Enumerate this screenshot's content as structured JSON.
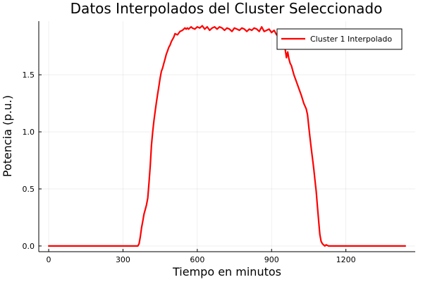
{
  "chart_data": {
    "type": "line",
    "title": "Datos Interpolados del Cluster Seleccionado",
    "xlabel": "Tiempo en minutos",
    "ylabel": "Potencia (p.u.)",
    "xlim": [
      -40,
      1480
    ],
    "ylim": [
      -0.05,
      1.97
    ],
    "xticks": [
      0,
      300,
      600,
      900,
      1200
    ],
    "xtick_labels": [
      "0",
      "300",
      "600",
      "900",
      "1200"
    ],
    "yticks": [
      0.0,
      0.5,
      1.0,
      1.5
    ],
    "ytick_labels": [
      "0.0",
      "0.5",
      "1.0",
      "1.5"
    ],
    "grid": true,
    "legend_position": "top-right",
    "series": [
      {
        "name": "Cluster 1 Interpolado",
        "color": "#ff0000",
        "x": [
          0,
          100,
          200,
          300,
          360,
          365,
          370,
          375,
          380,
          385,
          390,
          395,
          400,
          405,
          410,
          415,
          420,
          425,
          430,
          435,
          440,
          445,
          450,
          455,
          460,
          465,
          470,
          475,
          480,
          485,
          490,
          495,
          500,
          505,
          510,
          520,
          530,
          540,
          550,
          555,
          560,
          565,
          570,
          575,
          580,
          590,
          600,
          610,
          620,
          630,
          640,
          650,
          660,
          670,
          680,
          690,
          700,
          710,
          720,
          730,
          740,
          750,
          760,
          770,
          780,
          790,
          800,
          810,
          820,
          830,
          840,
          850,
          860,
          870,
          880,
          890,
          900,
          910,
          920,
          930,
          940,
          950,
          955,
          960,
          965,
          970,
          975,
          980,
          990,
          1000,
          1010,
          1020,
          1030,
          1040,
          1045,
          1050,
          1055,
          1060,
          1065,
          1070,
          1075,
          1080,
          1085,
          1090,
          1095,
          1100,
          1105,
          1110,
          1115,
          1120,
          1130,
          1150,
          1200,
          1300,
          1440
        ],
        "values": [
          0.0,
          0.0,
          0.0,
          0.0,
          0.0,
          0.02,
          0.08,
          0.16,
          0.22,
          0.28,
          0.32,
          0.36,
          0.42,
          0.55,
          0.7,
          0.88,
          1.0,
          1.1,
          1.18,
          1.26,
          1.33,
          1.4,
          1.47,
          1.53,
          1.56,
          1.6,
          1.64,
          1.68,
          1.71,
          1.74,
          1.76,
          1.79,
          1.81,
          1.83,
          1.86,
          1.85,
          1.88,
          1.89,
          1.91,
          1.9,
          1.91,
          1.9,
          1.91,
          1.92,
          1.91,
          1.9,
          1.92,
          1.91,
          1.93,
          1.9,
          1.92,
          1.89,
          1.91,
          1.92,
          1.9,
          1.92,
          1.91,
          1.89,
          1.91,
          1.9,
          1.88,
          1.91,
          1.9,
          1.89,
          1.91,
          1.9,
          1.88,
          1.9,
          1.89,
          1.91,
          1.9,
          1.88,
          1.92,
          1.88,
          1.89,
          1.9,
          1.87,
          1.89,
          1.85,
          1.84,
          1.8,
          1.76,
          1.72,
          1.65,
          1.7,
          1.64,
          1.6,
          1.58,
          1.5,
          1.44,
          1.38,
          1.32,
          1.25,
          1.2,
          1.15,
          1.05,
          0.95,
          0.86,
          0.77,
          0.68,
          0.58,
          0.48,
          0.35,
          0.22,
          0.1,
          0.04,
          0.02,
          0.01,
          0.0,
          0.01,
          0.0,
          0.0,
          0.0,
          0.0,
          0.0
        ]
      }
    ]
  }
}
